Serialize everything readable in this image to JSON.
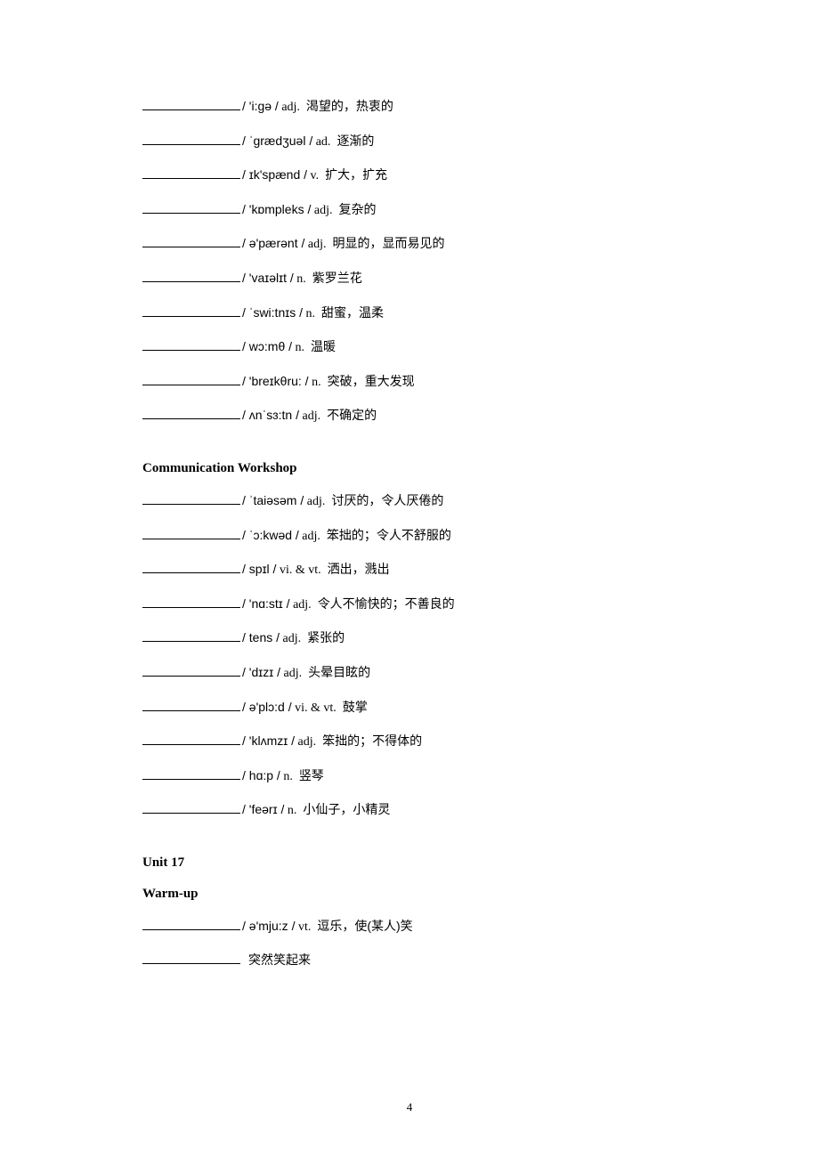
{
  "section1": {
    "entries": [
      {
        "phonetic": "/ 'i:gə /",
        "pos": "adj.",
        "def": "渴望的，热衷的"
      },
      {
        "phonetic": "/ ˈgrædʒuəl /",
        "pos": "ad.",
        "def": "逐渐的"
      },
      {
        "phonetic": "/ ɪk'spænd /",
        "pos": "v.",
        "def": "扩大，扩充"
      },
      {
        "phonetic": "/ 'kɒmpleks /",
        "pos": "adj.",
        "def": "复杂的"
      },
      {
        "phonetic": "/ ə'pærənt /",
        "pos": "adj.",
        "def": "明显的，显而易见的"
      },
      {
        "phonetic": "/ 'vaɪəlɪt /",
        "pos": "n.",
        "def": "紫罗兰花"
      },
      {
        "phonetic": "/ ˈswi:tnɪs /",
        "pos": "n.",
        "def": "甜蜜，温柔"
      },
      {
        "phonetic": "/ wɔ:mθ /",
        "pos": "n.",
        "def": "温暖"
      },
      {
        "phonetic": "/ 'breɪkθru: /",
        "pos": "n.",
        "def": "突破，重大发现"
      },
      {
        "phonetic": "/ ʌnˈsɜ:tn /",
        "pos": "adj.",
        "def": "不确定的"
      }
    ]
  },
  "section2": {
    "title": "Communication Workshop",
    "entries": [
      {
        "phonetic": "/ ˈtaiəsəm /",
        "pos": "adj.",
        "def": "讨厌的，令人厌倦的"
      },
      {
        "phonetic": "/ ˈɔ:kwəd /",
        "pos": "adj.",
        "def": "笨拙的；令人不舒服的"
      },
      {
        "phonetic": "/ spɪl /",
        "pos": "vi. & vt.",
        "def": "洒出，溅出"
      },
      {
        "phonetic": "/ 'nɑ:stɪ /",
        "pos": "adj.",
        "def": "令人不愉快的；不善良的"
      },
      {
        "phonetic": "/ tens /",
        "pos": "adj.",
        "def": "紧张的"
      },
      {
        "phonetic": "/ 'dɪzɪ /",
        "pos": "adj.",
        "def": "头晕目眩的"
      },
      {
        "phonetic": "/ ə'plɔ:d /",
        "pos": "vi. & vt.",
        "def": "鼓掌"
      },
      {
        "phonetic": "/ 'klʌmzɪ /",
        "pos": "adj.",
        "def": "笨拙的；不得体的"
      },
      {
        "phonetic": "/ hɑ:p /",
        "pos": "n.",
        "def": "竖琴"
      },
      {
        "phonetic": "/ 'feərɪ /",
        "pos": "n.",
        "def": "小仙子，小精灵"
      }
    ]
  },
  "section3": {
    "title": "Unit 17",
    "subtitle": "Warm-up",
    "entries": [
      {
        "phonetic": "/ ə'mju:z /",
        "pos": "vt.",
        "def": "逗乐，使(某人)笑"
      },
      {
        "phonetic": "",
        "pos": "",
        "def": "突然笑起来"
      }
    ]
  },
  "pageNumber": "4"
}
